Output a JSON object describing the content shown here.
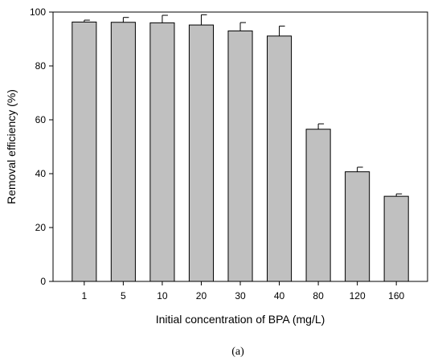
{
  "chart_data": {
    "type": "bar",
    "categories": [
      "1",
      "5",
      "10",
      "20",
      "30",
      "40",
      "80",
      "120",
      "160"
    ],
    "values": [
      96.3,
      96.2,
      96.0,
      95.2,
      93.0,
      91.1,
      56.5,
      40.7,
      31.6
    ],
    "errors": [
      0.7,
      1.8,
      2.8,
      3.8,
      3.1,
      3.7,
      2.0,
      1.7,
      0.9
    ],
    "title": "",
    "xlabel": "Initial concentration of BPA (mg/L)",
    "ylabel": "Removal efficiency (%)",
    "ylim": [
      0,
      100
    ],
    "yticks": [
      "0",
      "20",
      "40",
      "60",
      "80",
      "100"
    ],
    "grid": false,
    "bar_color": "#c0c0c0",
    "edge_color": "#000000"
  },
  "panel_label": "(a)"
}
